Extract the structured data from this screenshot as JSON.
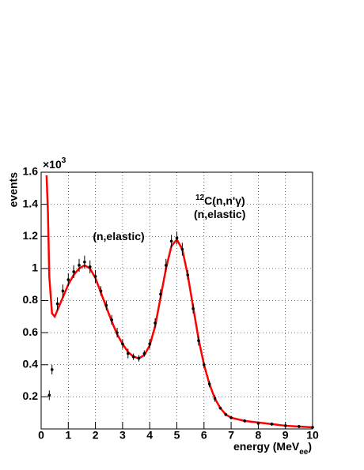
{
  "chart_data": {
    "type": "line",
    "ylabel": "events",
    "y_multiplier": "×10",
    "y_multiplier_exp": "3",
    "xlabel": "energy (MeV",
    "xlabel_sub": "ee",
    "xlabel_end": ")",
    "xlim": [
      0,
      10
    ],
    "xticks": [
      0,
      1,
      2,
      3,
      4,
      5,
      6,
      7,
      8,
      9,
      10
    ],
    "ylim": [
      0,
      1.6
    ],
    "yticks": [
      0.2,
      0.4,
      0.6,
      0.8,
      1,
      1.2,
      1.4,
      1.6
    ],
    "grid": true,
    "annotations": [
      {
        "text": "(n,elastic)"
      },
      {
        "sup": "12",
        "text": "C(n,n'γ)"
      },
      {
        "text": "(n,elastic)"
      }
    ],
    "series": [
      {
        "style": "line",
        "color": "#ff0000",
        "x": [
          0.2,
          0.25,
          0.3,
          0.4,
          0.5,
          0.6,
          0.8,
          1.0,
          1.2,
          1.4,
          1.6,
          1.8,
          2.0,
          2.2,
          2.4,
          2.6,
          2.8,
          3.0,
          3.2,
          3.4,
          3.6,
          3.8,
          4.0,
          4.2,
          4.4,
          4.6,
          4.8,
          5.0,
          5.2,
          5.4,
          5.6,
          5.8,
          6.0,
          6.2,
          6.4,
          6.6,
          6.8,
          7.0,
          7.5,
          8.0,
          8.5,
          9.0,
          9.5,
          10
        ],
        "values": [
          1.58,
          1.35,
          0.95,
          0.72,
          0.7,
          0.74,
          0.82,
          0.9,
          0.96,
          1.0,
          1.02,
          1.0,
          0.94,
          0.85,
          0.76,
          0.67,
          0.59,
          0.53,
          0.48,
          0.45,
          0.44,
          0.46,
          0.52,
          0.64,
          0.82,
          1.0,
          1.14,
          1.18,
          1.12,
          0.96,
          0.76,
          0.56,
          0.4,
          0.28,
          0.19,
          0.13,
          0.09,
          0.07,
          0.05,
          0.04,
          0.03,
          0.02,
          0.015,
          0.01
        ]
      },
      {
        "style": "errorbar",
        "color": "#000000",
        "x": [
          0.3,
          0.4,
          0.6,
          0.8,
          1.0,
          1.2,
          1.4,
          1.6,
          1.8,
          2.0,
          2.2,
          2.4,
          2.6,
          2.8,
          3.0,
          3.2,
          3.4,
          3.6,
          3.8,
          4.0,
          4.2,
          4.4,
          4.6,
          4.8,
          5.0,
          5.2,
          5.4,
          5.6,
          5.8,
          6.0,
          6.2,
          6.4,
          6.6,
          6.8,
          7.0,
          7.5,
          8.0,
          8.5,
          9.0,
          9.5,
          10
        ],
        "values": [
          0.21,
          0.37,
          0.78,
          0.86,
          0.93,
          0.98,
          1.02,
          1.04,
          1.01,
          0.95,
          0.86,
          0.77,
          0.68,
          0.6,
          0.53,
          0.47,
          0.45,
          0.44,
          0.47,
          0.53,
          0.66,
          0.84,
          1.02,
          1.17,
          1.19,
          1.12,
          0.96,
          0.75,
          0.55,
          0.4,
          0.28,
          0.19,
          0.13,
          0.09,
          0.07,
          0.05,
          0.035,
          0.03,
          0.02,
          0.015,
          0.01
        ],
        "errors": [
          0.03,
          0.03,
          0.04,
          0.04,
          0.04,
          0.04,
          0.04,
          0.04,
          0.04,
          0.04,
          0.03,
          0.03,
          0.03,
          0.03,
          0.03,
          0.03,
          0.02,
          0.02,
          0.02,
          0.03,
          0.03,
          0.03,
          0.04,
          0.04,
          0.04,
          0.04,
          0.03,
          0.03,
          0.03,
          0.02,
          0.02,
          0.02,
          0.01,
          0.01,
          0.01,
          0.01,
          0.01,
          0.01,
          0.01,
          0.01,
          0.01
        ]
      }
    ]
  }
}
